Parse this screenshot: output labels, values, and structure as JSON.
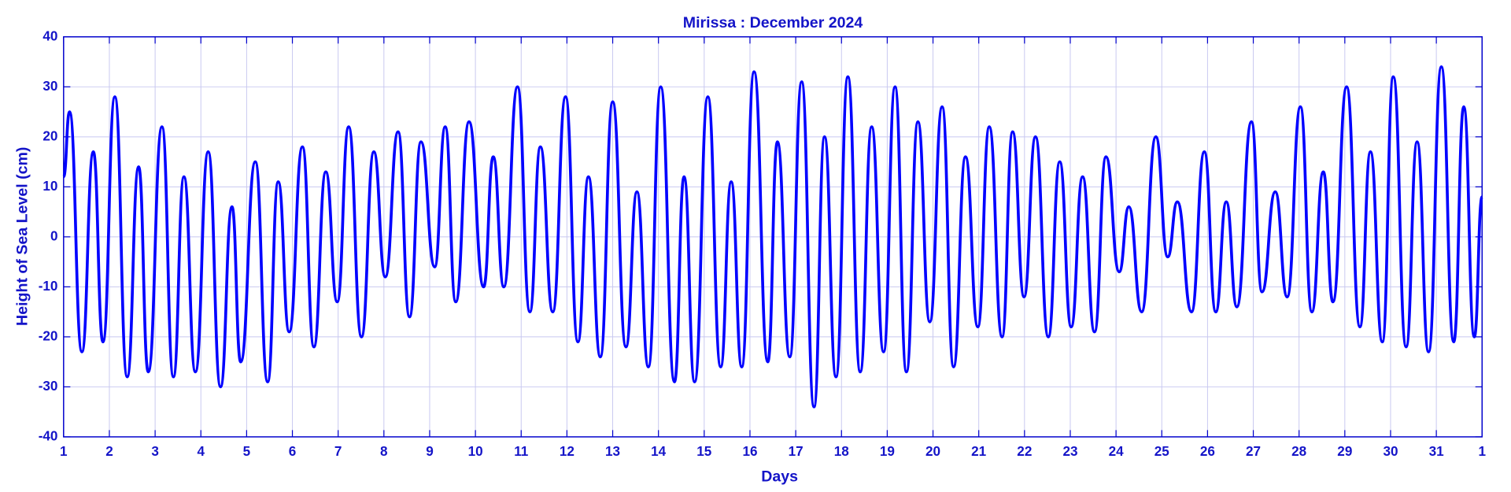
{
  "chart_data": {
    "type": "line",
    "title": "Mirissa : December 2024",
    "xlabel": "Days",
    "ylabel": "Height of Sea Level (cm)",
    "xlim": [
      1,
      32
    ],
    "xticks": [
      1,
      2,
      3,
      4,
      5,
      6,
      7,
      8,
      9,
      10,
      11,
      12,
      13,
      14,
      15,
      16,
      17,
      18,
      19,
      20,
      21,
      22,
      23,
      24,
      25,
      26,
      27,
      28,
      29,
      30,
      31,
      {
        "value": 32,
        "label": "1"
      }
    ],
    "ylim": [
      -40,
      40
    ],
    "yticks": [
      -40,
      -30,
      -20,
      -10,
      0,
      10,
      20,
      30,
      40
    ],
    "grid": true,
    "series": [
      {
        "name": "Height of Sea Level",
        "color": "#0000ff",
        "x": [
          1.0,
          1.13,
          1.4,
          1.65,
          1.86,
          2.12,
          2.39,
          2.64,
          2.85,
          3.15,
          3.4,
          3.63,
          3.88,
          4.16,
          4.43,
          4.68,
          4.87,
          5.19,
          5.46,
          5.69,
          5.93,
          6.22,
          6.47,
          6.73,
          6.98,
          7.23,
          7.51,
          7.78,
          8.03,
          8.31,
          8.56,
          8.81,
          9.11,
          9.34,
          9.57,
          9.86,
          10.18,
          10.39,
          10.62,
          10.92,
          11.19,
          11.42,
          11.69,
          11.97,
          12.24,
          12.47,
          12.73,
          13.0,
          13.29,
          13.53,
          13.78,
          14.05,
          14.35,
          14.56,
          14.79,
          15.08,
          15.36,
          15.59,
          15.82,
          16.09,
          16.39,
          16.6,
          16.87,
          17.13,
          17.4,
          17.63,
          17.88,
          18.14,
          18.41,
          18.66,
          18.92,
          19.17,
          19.42,
          19.67,
          19.93,
          20.2,
          20.45,
          20.71,
          20.98,
          21.23,
          21.51,
          21.74,
          21.99,
          22.24,
          22.52,
          22.77,
          23.02,
          23.27,
          23.53,
          23.78,
          24.07,
          24.28,
          24.56,
          24.87,
          25.13,
          25.34,
          25.65,
          25.93,
          26.18,
          26.41,
          26.64,
          26.96,
          27.19,
          27.48,
          27.74,
          28.03,
          28.28,
          28.53,
          28.74,
          29.04,
          29.33,
          29.56,
          29.82,
          30.06,
          30.34,
          30.58,
          30.83,
          31.11,
          31.38,
          31.6,
          31.83,
          32.0
        ],
        "values": [
          12,
          25,
          -23,
          17,
          -21,
          28,
          -28,
          14,
          -27,
          22,
          -28,
          12,
          -27,
          17,
          -30,
          6,
          -25,
          15,
          -29,
          11,
          -19,
          18,
          -22,
          13,
          -13,
          22,
          -20,
          17,
          -8,
          21,
          -16,
          19,
          -6,
          22,
          -13,
          23,
          -10,
          16,
          -10,
          30,
          -15,
          18,
          -15,
          28,
          -21,
          12,
          -24,
          27,
          -22,
          9,
          -26,
          30,
          -29,
          12,
          -29,
          28,
          -26,
          11,
          -26,
          33,
          -25,
          19,
          -24,
          31,
          -34,
          20,
          -28,
          32,
          -27,
          22,
          -23,
          30,
          -27,
          23,
          -17,
          26,
          -26,
          16,
          -18,
          22,
          -20,
          21,
          -12,
          20,
          -20,
          15,
          -18,
          12,
          -19,
          16,
          -7,
          6,
          -15,
          20,
          -4,
          7,
          -15,
          17,
          -15,
          7,
          -14,
          23,
          -11,
          9,
          -12,
          26,
          -15,
          13,
          -13,
          30,
          -18,
          17,
          -21,
          32,
          -22,
          19,
          -23,
          34,
          -21,
          26,
          -20,
          8
        ]
      }
    ]
  }
}
